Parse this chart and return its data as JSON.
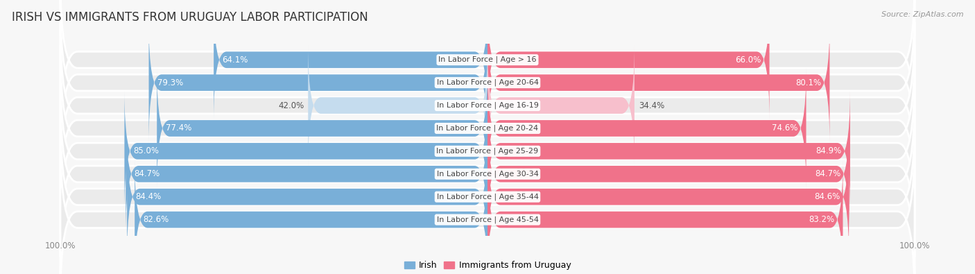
{
  "title": "IRISH VS IMMIGRANTS FROM URUGUAY LABOR PARTICIPATION",
  "source": "Source: ZipAtlas.com",
  "categories": [
    "In Labor Force | Age > 16",
    "In Labor Force | Age 20-64",
    "In Labor Force | Age 16-19",
    "In Labor Force | Age 20-24",
    "In Labor Force | Age 25-29",
    "In Labor Force | Age 30-34",
    "In Labor Force | Age 35-44",
    "In Labor Force | Age 45-54"
  ],
  "irish_values": [
    64.1,
    79.3,
    42.0,
    77.4,
    85.0,
    84.7,
    84.4,
    82.6
  ],
  "uruguay_values": [
    66.0,
    80.1,
    34.4,
    74.6,
    84.9,
    84.7,
    84.6,
    83.2
  ],
  "irish_color": "#79afd8",
  "irish_color_light": "#c5dcee",
  "uruguay_color": "#f0728a",
  "uruguay_color_light": "#f7bfcc",
  "row_bg_color": "#ebebeb",
  "fig_bg_color": "#f7f7f7",
  "title_color": "#333333",
  "axis_label_color": "#888888",
  "max_value": 100.0,
  "bar_height": 0.72,
  "title_fontsize": 12,
  "value_fontsize": 8.5,
  "category_fontsize": 8,
  "legend_fontsize": 9,
  "source_fontsize": 8,
  "threshold_dark_label": 55
}
